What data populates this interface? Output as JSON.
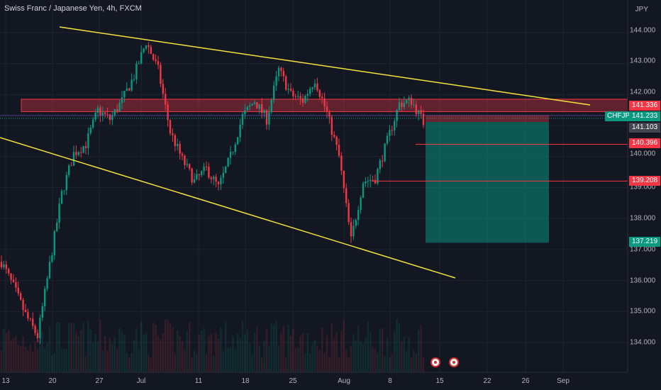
{
  "header": {
    "title": "Swiss Franc / Japanese Yen, 4h, FXCM",
    "currency": "JPY"
  },
  "symbol_label": "CHFJPY",
  "price_axis": {
    "ticks": [
      "144.000",
      "143.000",
      "142.000",
      "140.000",
      "139.000",
      "138.000",
      "137.000",
      "136.000",
      "135.000",
      "134.000"
    ]
  },
  "time_axis": {
    "ticks": [
      "13",
      "20",
      "27",
      "Jul",
      "11",
      "18",
      "25",
      "Aug",
      "8",
      "15",
      "22",
      "26",
      "Sep"
    ]
  },
  "price_labels": [
    {
      "text": "141.336",
      "value": 141.336,
      "bg": "#f23645"
    },
    {
      "text": "141.233",
      "value": 141.233,
      "bg": "#089981"
    },
    {
      "text": "141.103",
      "value": 141.103,
      "bg": "#434651"
    },
    {
      "text": "140.396",
      "value": 140.396,
      "bg": "#f23645"
    },
    {
      "text": "139.208",
      "value": 139.208,
      "bg": "#f23645"
    },
    {
      "text": "137.219",
      "value": 137.219,
      "bg": "#089981"
    }
  ],
  "colors": {
    "background": "#131722",
    "up": "#089981",
    "down": "#f23645",
    "trendline": "#f5e23a",
    "zone": "#f23645",
    "target": "#089981"
  },
  "events": [
    {
      "icon": "dividend-event-icon"
    },
    {
      "icon": "dividend-event-icon"
    }
  ],
  "chart_data": {
    "type": "candlestick",
    "title": "Swiss Franc / Japanese Yen, 4h, FXCM",
    "ylabel": "JPY",
    "ylim": [
      133.7,
      144.8
    ],
    "x_ticks": [
      "13",
      "20",
      "27",
      "Jul",
      "11",
      "18",
      "25",
      "Aug",
      "8",
      "15",
      "22",
      "26",
      "Sep"
    ],
    "close_path": [
      [
        "Jun 13",
        136.6
      ],
      [
        "Jun 14",
        135.8
      ],
      [
        "Jun 15",
        134.9
      ],
      [
        "Jun 16",
        134.2
      ],
      [
        "Jun 17",
        136.5
      ],
      [
        "Jun 18",
        138.8
      ],
      [
        "Jun 19",
        140.1
      ],
      [
        "Jun 20",
        140.4
      ],
      [
        "Jun 21",
        141.5
      ],
      [
        "Jun 23",
        141.2
      ],
      [
        "Jun 25",
        141.8
      ],
      [
        "Jun 27",
        142.6
      ],
      [
        "Jun 29",
        143.7
      ],
      [
        "Jul 1",
        142.8
      ],
      [
        "Jul 3",
        140.8
      ],
      [
        "Jul 5",
        139.9
      ],
      [
        "Jul 7",
        139.2
      ],
      [
        "Jul 9",
        139.6
      ],
      [
        "Jul 11",
        139.0
      ],
      [
        "Jul 13",
        140.0
      ],
      [
        "Jul 15",
        141.3
      ],
      [
        "Jul 17",
        141.8
      ],
      [
        "Jul 19",
        141.2
      ],
      [
        "Jul 21",
        142.8
      ],
      [
        "Jul 23",
        142.0
      ],
      [
        "Jul 25",
        141.8
      ],
      [
        "Jul 27",
        142.5
      ],
      [
        "Jul 29",
        141.4
      ],
      [
        "Jul 31",
        140.0
      ],
      [
        "Aug 2",
        137.3
      ],
      [
        "Aug 4",
        139.2
      ],
      [
        "Aug 6",
        139.3
      ],
      [
        "Aug 8",
        140.5
      ],
      [
        "Aug 10",
        141.7
      ],
      [
        "Aug 11",
        141.8
      ],
      [
        "Aug 12",
        141.1
      ]
    ],
    "trendlines": [
      {
        "name": "upper",
        "from": 143.95,
        "to": 141.6
      },
      {
        "name": "lower",
        "from": 140.6,
        "to": 136.0
      }
    ],
    "resistance_zone": [
      141.45,
      141.85
    ],
    "position": {
      "type": "short",
      "entry": 141.233,
      "stop": 141.336,
      "target": 137.219
    },
    "horizontal_lines": [
      140.396,
      139.208
    ],
    "grid": true
  }
}
